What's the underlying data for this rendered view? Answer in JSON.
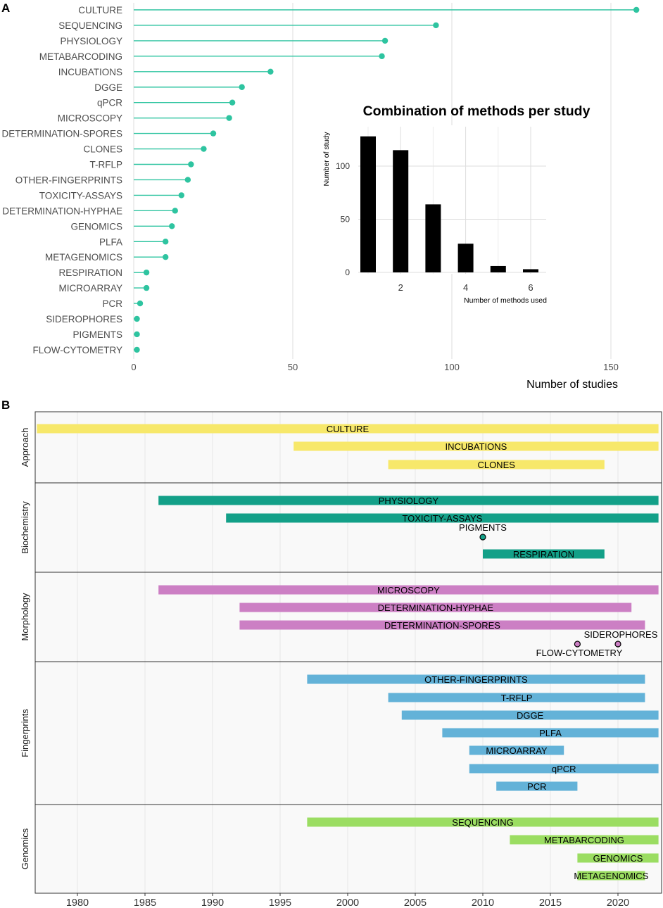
{
  "panel_a_letter": "A",
  "panel_b_letter": "B",
  "colors": {
    "lollipop": "#2ec4a0",
    "grid": "#dedede",
    "approach": "#f7e86a",
    "biochemistry": "#13a088",
    "morphology": "#cc7fc4",
    "fingerprints": "#63b2d8",
    "genomics": "#9bdd62",
    "panel_bg": "#f9f9f9"
  },
  "chart_data": [
    {
      "type": "lollipop",
      "panel": "A",
      "title": "",
      "xlabel": "Number of studies",
      "ylabel": "",
      "xlim": [
        0,
        165
      ],
      "xticks": [
        0,
        50,
        100,
        150
      ],
      "categories": [
        "CULTURE",
        "SEQUENCING",
        "PHYSIOLOGY",
        "METABARCODING",
        "INCUBATIONS",
        "DGGE",
        "qPCR",
        "MICROSCOPY",
        "DETERMINATION-SPORES",
        "CLONES",
        "T-RFLP",
        "OTHER-FINGERPRINTS",
        "TOXICITY-ASSAYS",
        "DETERMINATION-HYPHAE",
        "GENOMICS",
        "PLFA",
        "METAGENOMICS",
        "RESPIRATION",
        "MICROARRAY",
        "PCR",
        "SIDEROPHORES",
        "PIGMENTS",
        "FLOW-CYTOMETRY"
      ],
      "values": [
        158,
        95,
        79,
        78,
        43,
        34,
        31,
        30,
        25,
        22,
        18,
        17,
        15,
        13,
        12,
        10,
        10,
        4,
        4,
        2,
        1,
        1,
        1
      ]
    },
    {
      "type": "bar",
      "panel": "A-inset",
      "title": "Combination of methods per study",
      "xlabel": "Number of methods used",
      "ylabel": "Number of study",
      "categories": [
        1,
        2,
        3,
        4,
        5,
        6
      ],
      "xticks": [
        2,
        4,
        6
      ],
      "values": [
        128,
        115,
        64,
        27,
        6,
        3
      ],
      "ylim": [
        0,
        135
      ],
      "yticks": [
        0,
        50,
        100
      ]
    },
    {
      "type": "timeline",
      "panel": "B",
      "xlabel": "",
      "xlim": [
        1977,
        2023
      ],
      "xticks": [
        1980,
        1985,
        1990,
        1995,
        2000,
        2005,
        2010,
        2015,
        2020
      ],
      "groups": [
        {
          "name": "Approach",
          "color_key": "approach",
          "items": [
            {
              "label": "CULTURE",
              "start": 1977,
              "end": 2023
            },
            {
              "label": "INCUBATIONS",
              "start": 1996,
              "end": 2023
            },
            {
              "label": "CLONES",
              "start": 2003,
              "end": 2019
            }
          ]
        },
        {
          "name": "Biochemistry",
          "color_key": "biochemistry",
          "items": [
            {
              "label": "PHYSIOLOGY",
              "start": 1986,
              "end": 2023
            },
            {
              "label": "TOXICITY-ASSAYS",
              "start": 1991,
              "end": 2023
            },
            {
              "label": "PIGMENTS",
              "start": 2010,
              "end": 2010
            },
            {
              "label": "RESPIRATION",
              "start": 2010,
              "end": 2019
            }
          ]
        },
        {
          "name": "Morphology",
          "color_key": "morphology",
          "items": [
            {
              "label": "MICROSCOPY",
              "start": 1986,
              "end": 2023
            },
            {
              "label": "DETERMINATION-HYPHAE",
              "start": 1992,
              "end": 2021
            },
            {
              "label": "DETERMINATION-SPORES",
              "start": 1992,
              "end": 2022
            },
            {
              "label": "SIDEROPHORES",
              "start": 2020,
              "end": 2020
            },
            {
              "label": "FLOW-CYTOMETRY",
              "start": 2017,
              "end": 2017
            }
          ]
        },
        {
          "name": "Fingerprints",
          "color_key": "fingerprints",
          "items": [
            {
              "label": "OTHER-FINGERPRINTS",
              "start": 1997,
              "end": 2022
            },
            {
              "label": "T-RFLP",
              "start": 2003,
              "end": 2022
            },
            {
              "label": "DGGE",
              "start": 2004,
              "end": 2023
            },
            {
              "label": "PLFA",
              "start": 2007,
              "end": 2023
            },
            {
              "label": "MICROARRAY",
              "start": 2009,
              "end": 2016
            },
            {
              "label": "qPCR",
              "start": 2009,
              "end": 2023
            },
            {
              "label": "PCR",
              "start": 2011,
              "end": 2017
            }
          ]
        },
        {
          "name": "Genomics",
          "color_key": "genomics",
          "items": [
            {
              "label": "SEQUENCING",
              "start": 1997,
              "end": 2023
            },
            {
              "label": "METABARCODING",
              "start": 2012,
              "end": 2023
            },
            {
              "label": "GENOMICS",
              "start": 2017,
              "end": 2023
            },
            {
              "label": "METAGENOMICS",
              "start": 2017,
              "end": 2022
            }
          ]
        }
      ]
    }
  ]
}
